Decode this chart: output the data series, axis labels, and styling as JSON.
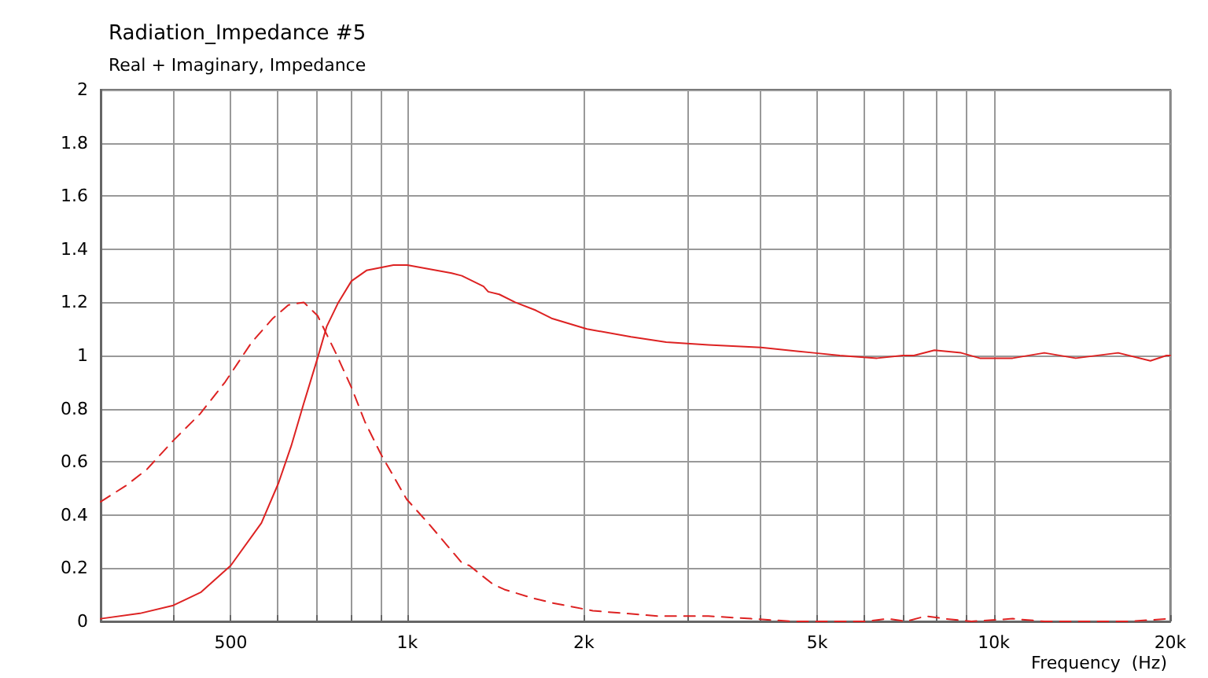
{
  "chart_data": {
    "type": "line",
    "title": "Radiation_Impedance #5",
    "subtitle": "Real + Imaginary, Impedance",
    "xlabel": "Frequency  (Hz)",
    "log": "x",
    "grid": true,
    "marker": "none",
    "xlim": [
      300,
      20000
    ],
    "ylim": [
      0,
      2
    ],
    "xticks": [
      {
        "value": 400,
        "label": null
      },
      500,
      {
        "value": 600,
        "label": null
      },
      {
        "value": 700,
        "label": null
      },
      {
        "value": 800,
        "label": null
      },
      {
        "value": 900,
        "label": null
      },
      {
        "value": 1000,
        "label": "1k"
      },
      {
        "value": 2000,
        "label": "2k"
      },
      {
        "value": 3000,
        "label": null
      },
      {
        "value": 4000,
        "label": null
      },
      {
        "value": 5000,
        "label": "5k"
      },
      {
        "value": 6000,
        "label": null
      },
      {
        "value": 7000,
        "label": null
      },
      {
        "value": 8000,
        "label": null
      },
      {
        "value": 9000,
        "label": null
      },
      {
        "value": 10000,
        "label": "10k"
      },
      {
        "value": 20000,
        "label": "20k"
      }
    ],
    "yticks": [
      0,
      0.2,
      0.4,
      0.6,
      0.8,
      1,
      1.2,
      1.4,
      1.6,
      1.8,
      2
    ],
    "series": [
      {
        "color": "#dd2222",
        "line_style": "solid",
        "x": [
          300,
          350,
          399,
          445,
          500,
          564,
          603,
          634,
          666,
          703,
          729,
          763,
          803,
          852,
          947,
          1000,
          1190,
          1239,
          1349,
          1374,
          1435,
          1528,
          1656,
          1762,
          2024,
          2407,
          2764,
          3262,
          4010,
          4934,
          5465,
          6324,
          6992,
          7310,
          7923,
          8800,
          9470,
          10770,
          12200,
          13800,
          16300,
          18500,
          19700,
          20000
        ],
        "values": [
          0.01,
          0.03,
          0.06,
          0.11,
          0.21,
          0.37,
          0.52,
          0.66,
          0.82,
          0.99,
          1.11,
          1.2,
          1.28,
          1.32,
          1.34,
          1.34,
          1.31,
          1.3,
          1.26,
          1.24,
          1.23,
          1.2,
          1.17,
          1.14,
          1.1,
          1.07,
          1.05,
          1.04,
          1.03,
          1.01,
          1,
          0.99,
          1,
          1,
          1.02,
          1.01,
          0.99,
          0.99,
          1.01,
          0.99,
          1.01,
          0.98,
          1,
          1
        ]
      },
      {
        "color": "#dd2222",
        "line_style": "dashed",
        "x": [
          300,
          331,
          359,
          399,
          443,
          489,
          543,
          590,
          627,
          666,
          703,
          755,
          803,
          847,
          901,
          997,
          1095,
          1239,
          1276,
          1399,
          1464,
          1621,
          1762,
          2072,
          2670,
          3262,
          3860,
          4530,
          6050,
          6590,
          7100,
          7660,
          8250,
          9160,
          10770,
          12200,
          14400,
          17000,
          20000
        ],
        "values": [
          0.45,
          0.51,
          0.57,
          0.68,
          0.78,
          0.9,
          1.05,
          1.14,
          1.19,
          1.2,
          1.15,
          1.01,
          0.88,
          0.75,
          0.63,
          0.46,
          0.36,
          0.22,
          0.21,
          0.14,
          0.12,
          0.09,
          0.07,
          0.04,
          0.02,
          0.02,
          0.01,
          0,
          0,
          0.01,
          0,
          0.02,
          0.01,
          0,
          0.01,
          0,
          0,
          0,
          0.01
        ]
      }
    ]
  }
}
